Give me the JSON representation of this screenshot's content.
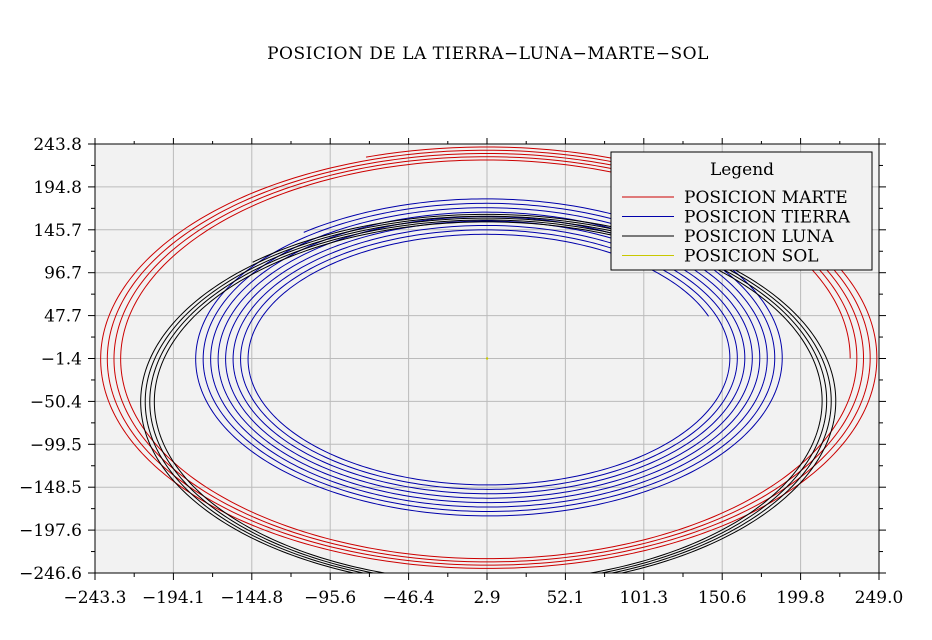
{
  "chart_data": {
    "type": "line",
    "title": "POSICION DE LA TIERRA−LUNA−MARTE−SOL",
    "xlabel": "",
    "ylabel": "",
    "xlim": [
      -243.3,
      249.0
    ],
    "ylim": [
      -246.6,
      243.8
    ],
    "x_ticks": [
      "−243.3",
      "−194.1",
      "−144.8",
      "−95.6",
      "−46.4",
      "2.9",
      "52.1",
      "101.3",
      "150.6",
      "199.8",
      "249.0"
    ],
    "y_ticks": [
      "243.8",
      "194.8",
      "145.7",
      "96.7",
      "47.7",
      "−1.4",
      "−50.4",
      "−99.5",
      "−148.5",
      "−197.6",
      "−246.6"
    ],
    "grid": true,
    "legend": {
      "title": "Legend",
      "placement": "top-right"
    },
    "series": [
      {
        "name": "POSICION MARTE",
        "color": "#cc0000",
        "orbit": {
          "center_x": 2.9,
          "center_y": -1.4,
          "rx_start": 228,
          "rx_end": 246,
          "ry_start": 226,
          "ry_end": 242,
          "turns": 4.3,
          "start_angle_deg": 0
        }
      },
      {
        "name": "POSICION TIERRA",
        "color": "#0000aa",
        "orbit": {
          "center_x": 2.9,
          "center_y": -1.4,
          "rx_start": 148,
          "rx_end": 187,
          "ry_start": 141,
          "ry_end": 183,
          "turns": 8.3,
          "start_angle_deg": 20
        }
      },
      {
        "name": "POSICION LUNA",
        "color": "#000000",
        "orbit": {
          "center_x": 2.9,
          "center_y": -50.4,
          "rx_start": 208,
          "rx_end": 220,
          "ry_start": 205,
          "ry_end": 214,
          "turns": 4.2,
          "start_angle_deg": 60
        }
      },
      {
        "name": "POSICION SOL",
        "color": "#c8c800",
        "points": [
          [
            2.9,
            -1.4
          ]
        ]
      }
    ]
  }
}
